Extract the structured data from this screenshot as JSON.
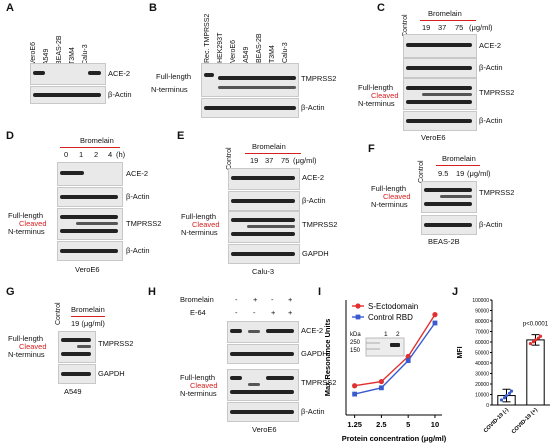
{
  "panels": {
    "A": {
      "letter": "A",
      "lanes": [
        "VeroE6",
        "A549",
        "BEAS-2B",
        "T3M4",
        "Calu-3"
      ],
      "rows": [
        "ACE-2",
        "β-Actin"
      ]
    },
    "B": {
      "letter": "B",
      "lanes": [
        "Rec. TMPRSS2",
        "HEK293T",
        "VeroE6",
        "A549",
        "BEAS-2B",
        "T3M4",
        "Calu-3"
      ],
      "rows": [
        "TMPRSS2",
        "β-Actin"
      ],
      "left_labels": [
        "Full-length",
        "N-terminus"
      ]
    },
    "C": {
      "letter": "C",
      "treatment": "Bromelain",
      "control": "Control",
      "doses": [
        "19",
        "37",
        "75"
      ],
      "unit": "(μg/ml)",
      "rows": [
        "ACE-2",
        "β-Actin",
        "TMPRSS2",
        "β-Actin"
      ],
      "left_labels": [
        "Full-length",
        "Cleaved",
        "N-terminus"
      ],
      "cell_line": "VeroE6"
    },
    "D": {
      "letter": "D",
      "treatment": "Bromelain",
      "times": [
        "0",
        "1",
        "2",
        "4"
      ],
      "unit": "(h)",
      "rows": [
        "ACE-2",
        "β-Actin",
        "TMPRSS2",
        "β-Actin"
      ],
      "left_labels": [
        "Full-length",
        "Cleaved",
        "N-terminus"
      ],
      "cell_line": "VeroE6"
    },
    "E": {
      "letter": "E",
      "treatment": "Bromelain",
      "control": "Control",
      "doses": [
        "19",
        "37",
        "75"
      ],
      "unit": "(μg/ml)",
      "rows": [
        "ACE-2",
        "β-Actin",
        "TMPRSS2",
        "GAPDH"
      ],
      "left_labels": [
        "Full-length",
        "Cleaved",
        "N-terminus"
      ],
      "cell_line": "Calu-3"
    },
    "F": {
      "letter": "F",
      "treatment": "Bromelain",
      "control": "Control",
      "doses": [
        "9.5",
        "19"
      ],
      "unit": "(μg/ml)",
      "rows": [
        "TMPRSS2",
        "β-Actin"
      ],
      "left_labels": [
        "Full-length",
        "Cleaved",
        "N-terminus"
      ],
      "cell_line": "BEAS-2B"
    },
    "G": {
      "letter": "G",
      "treatment": "Bromelain",
      "control": "Control",
      "dose": "19 (μg/ml)",
      "rows": [
        "TMPRSS2",
        "GAPDH"
      ],
      "left_labels": [
        "Full-length",
        "Cleaved",
        "N-terminus"
      ],
      "cell_line": "A549"
    },
    "H": {
      "letter": "H",
      "treatments": [
        "Bromelain",
        "E-64"
      ],
      "signs": [
        [
          "-",
          "+",
          "-",
          "+"
        ],
        [
          "-",
          "-",
          "+",
          "+"
        ]
      ],
      "rows": [
        "ACE-2",
        "GAPDH",
        "TMPRSS2",
        "β-Actin"
      ],
      "left_labels": [
        "Full-length",
        "Cleaved",
        "N-terminus"
      ],
      "cell_line": "VeroE6"
    },
    "I": {
      "letter": "I",
      "inset_kda_label": "kDa",
      "inset_marks": [
        "250",
        "150"
      ],
      "inset_lanes": [
        "1",
        "2"
      ]
    },
    "J": {
      "letter": "J",
      "pvalue": "p<0.0001"
    }
  },
  "chart_data": [
    {
      "type": "line",
      "panel": "I",
      "xlabel": "Protein concentration (μg/ml)",
      "ylabel": "Max Resonance Units",
      "x": [
        1.25,
        2.5,
        5,
        10
      ],
      "x_ticks": [
        "1.25",
        "2.5",
        "5",
        "10"
      ],
      "x_scale": "log",
      "series": [
        {
          "name": "S-Ectodomain",
          "values": [
            14,
            16,
            28,
            48
          ],
          "color": "#e03030",
          "marker": "circle"
        },
        {
          "name": "Control RBD",
          "values": [
            10,
            13,
            26,
            44
          ],
          "color": "#3a5bd0",
          "marker": "square"
        }
      ],
      "ylim": [
        0,
        55
      ],
      "legend": "top-left"
    },
    {
      "type": "bar",
      "panel": "J",
      "ylabel": "MFI",
      "categories": [
        "COVID-19 (-)",
        "COVID-19 (+)"
      ],
      "values": [
        9000,
        62000
      ],
      "errors": [
        6000,
        5000
      ],
      "yticks": [
        "0",
        "10000",
        "20000",
        "30000",
        "40000",
        "50000",
        "60000",
        "70000",
        "80000",
        "90000",
        "100000"
      ],
      "ylim": [
        0,
        100000
      ],
      "point_colors": [
        "#3a5bd0",
        "#e03030"
      ]
    }
  ]
}
